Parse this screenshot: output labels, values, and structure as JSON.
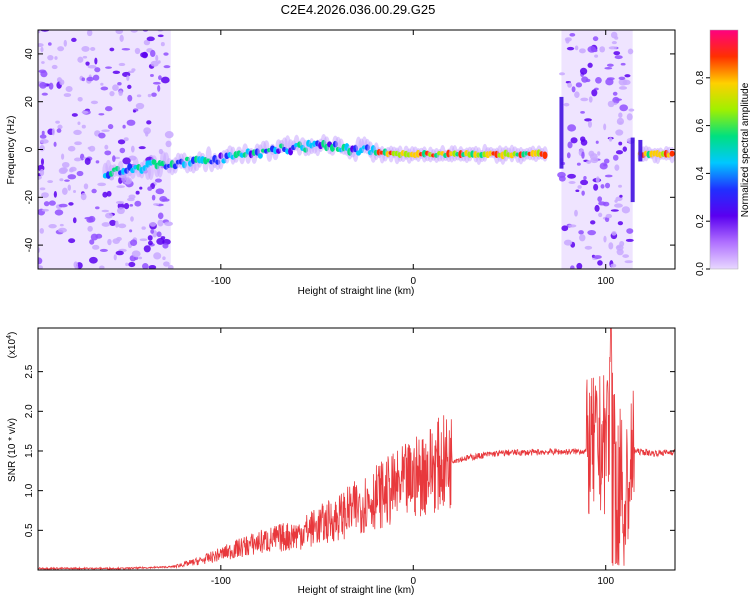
{
  "chart_data": [
    {
      "type": "heatmap",
      "title": "C2E4.2026.036.00.29.G25",
      "xlabel": "Height of straight line (km)",
      "ylabel": "Frequency (Hz)",
      "xlim": [
        -195,
        136
      ],
      "ylim": [
        -50,
        50
      ],
      "xticks": [
        -100,
        0,
        100
      ],
      "yticks": [
        40,
        20,
        0,
        -20,
        -40
      ],
      "colorbar": {
        "label": "Normalized spectral amplitude",
        "range": [
          0,
          1
        ],
        "ticks": [
          "0.0",
          "0.2",
          "0.4",
          "0.6",
          "0.8"
        ],
        "ticks_values": [
          0,
          0.2,
          0.4,
          0.6,
          0.8
        ],
        "colors": [
          "#e8d8ff",
          "#b070ff",
          "#5a00f0",
          "#2030ff",
          "#00c8ff",
          "#00e080",
          "#a0f000",
          "#ffd000",
          "#ff3000",
          "#ff0080"
        ]
      },
      "features": [
        {
          "name": "noise-region-left",
          "x_range": [
            -195,
            -126
          ],
          "y_range": [
            -50,
            50
          ]
        },
        {
          "name": "ridge",
          "points": [
            [
              -160,
              -10
            ],
            [
              -130,
              -6
            ],
            [
              -100,
              -4
            ],
            [
              -70,
              0
            ],
            [
              -45,
              2
            ],
            [
              -30,
              0
            ],
            [
              -10,
              -2
            ],
            [
              20,
              -2
            ],
            [
              70,
              -2
            ]
          ]
        },
        {
          "name": "noise-region-right",
          "x_range": [
            77,
            114
          ],
          "y_range": [
            -50,
            50
          ]
        },
        {
          "name": "tail-ridge",
          "points": [
            [
              118,
              -2
            ],
            [
              136,
              -2
            ]
          ]
        }
      ]
    },
    {
      "type": "line",
      "xlabel": "Height of straight line (km)",
      "ylabel": "SNR (10 * v/v)",
      "yunit": "(x10",
      "yunit_exp": "4",
      "yunit_close": ")",
      "xlim": [
        -195,
        136
      ],
      "ylim": [
        0,
        3.05
      ],
      "xticks": [
        -100,
        0,
        100
      ],
      "yticks": [
        0.5,
        1.0,
        1.5,
        2.0,
        2.5
      ],
      "yticks_labels": [
        "0.5",
        "1.0",
        "1.5",
        "2.0",
        "2.5"
      ],
      "color": "#e8383c",
      "series": [
        {
          "name": "SNR",
          "x": [
            -195,
            -150,
            -125,
            -110,
            -100,
            -90,
            -80,
            -70,
            -60,
            -50,
            -40,
            -30,
            -20,
            -10,
            0,
            10,
            20,
            30,
            40,
            50,
            60,
            70,
            80,
            90,
            95,
            100,
            103,
            106,
            110,
            115,
            125,
            136
          ],
          "y": [
            0.02,
            0.02,
            0.04,
            0.12,
            0.2,
            0.28,
            0.35,
            0.4,
            0.45,
            0.55,
            0.65,
            0.78,
            0.92,
            1.02,
            1.15,
            1.3,
            1.38,
            1.42,
            1.46,
            1.48,
            1.48,
            1.49,
            1.49,
            1.5,
            1.55,
            1.6,
            2.2,
            1.3,
            0.9,
            1.5,
            1.47,
            1.49
          ]
        }
      ]
    }
  ]
}
